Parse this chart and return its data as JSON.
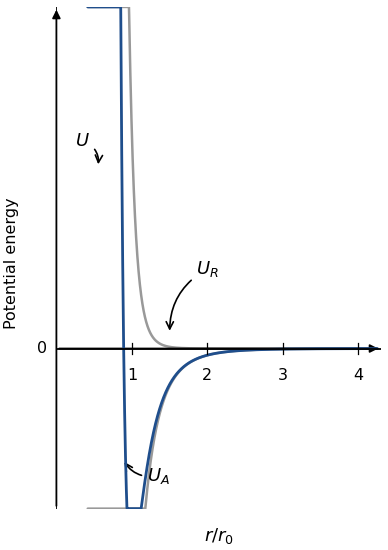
{
  "title": "",
  "xlabel": "r/r_0",
  "ylabel": "Potential energy",
  "xlim": [
    0,
    4.3
  ],
  "ylim": [
    -0.75,
    1.6
  ],
  "color_UR": "#999999",
  "color_U": "#1f4e8c",
  "color_UA": "#999999",
  "epsilon": 1.0,
  "sigma": 0.8909,
  "r_start": 0.415,
  "annotation_fontsize": 13
}
